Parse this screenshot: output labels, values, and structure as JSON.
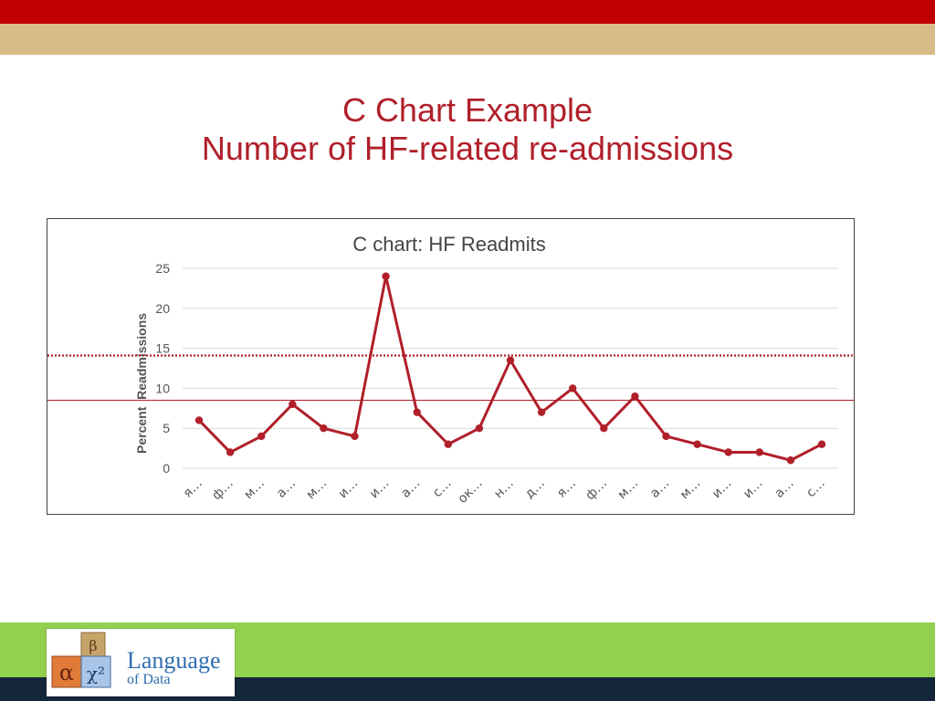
{
  "slide": {
    "title_line1": "C Chart Example",
    "title_line2": "Number of HF-related re-admissions"
  },
  "logo": {
    "text": "Language",
    "subtext": "of Data",
    "blocks": [
      "α",
      "β",
      "χ²"
    ]
  },
  "colors": {
    "accent_red": "#c00000",
    "tan": "#d8bc88",
    "green": "#92d050",
    "navy": "#14263a",
    "series": "#b01f2a",
    "title": "#b01f2a"
  },
  "chart_data": {
    "type": "line",
    "title": "C chart: HF Readmits",
    "ylabel": "Percent  Readmissions",
    "xlabel": "",
    "ylim": [
      0,
      25
    ],
    "yticks": [
      0,
      5,
      10,
      15,
      20,
      25
    ],
    "grid": true,
    "categories": [
      "я…",
      "ф…",
      "м…",
      "а…",
      "м…",
      "и…",
      "и…",
      "а…",
      "с…",
      "ок…",
      "н…",
      "д…",
      "я…",
      "ф…",
      "м…",
      "а…",
      "м…",
      "и…",
      "и…",
      "а…",
      "с…"
    ],
    "series": [
      {
        "values": [
          6,
          2,
          4,
          8,
          5,
          4,
          24,
          7,
          3,
          5,
          13.5,
          7,
          10,
          5,
          9,
          4,
          3,
          2,
          2,
          1,
          3
        ]
      }
    ],
    "reference_lines": [
      {
        "value": 14.1,
        "style": "dotted"
      },
      {
        "value": 8.5,
        "style": "solid"
      }
    ]
  }
}
